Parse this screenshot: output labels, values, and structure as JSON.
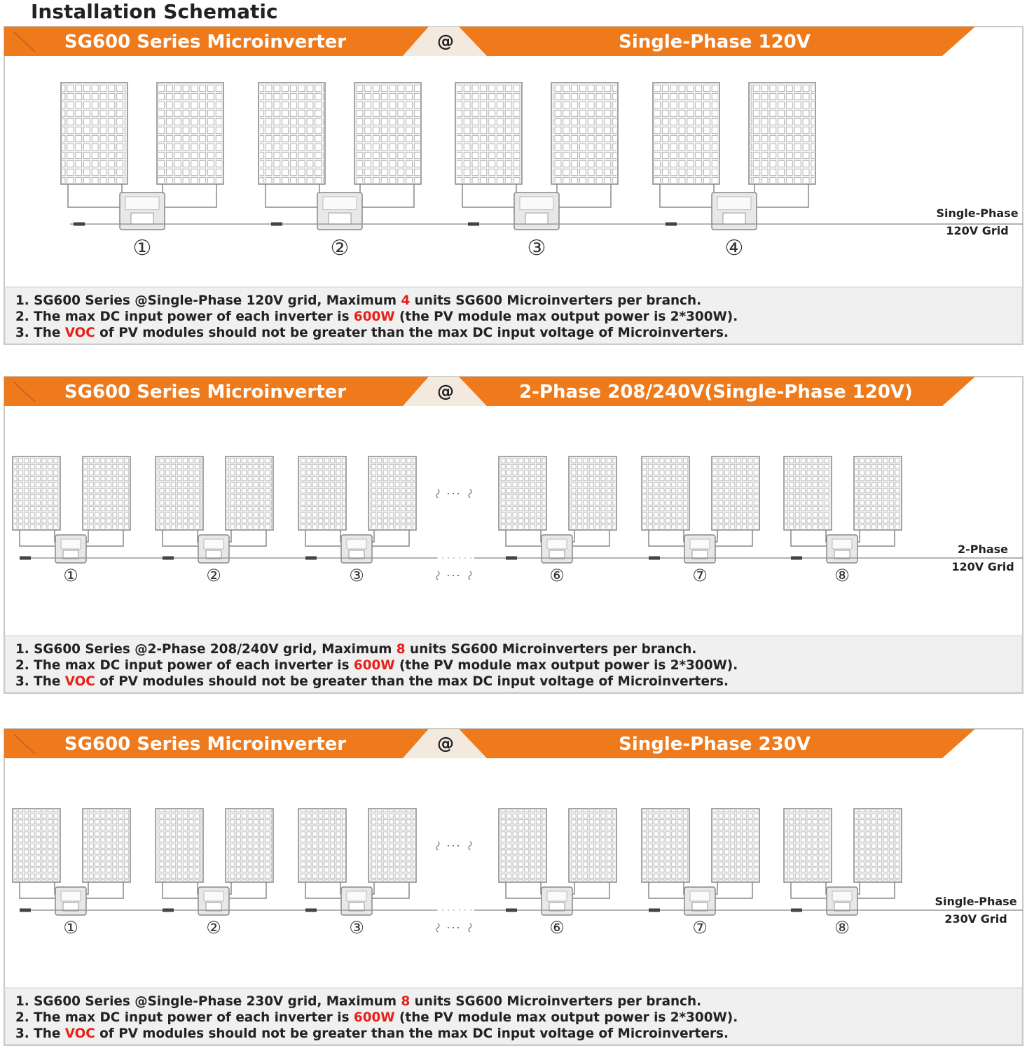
{
  "title": "Installation Schematic",
  "sections": [
    {
      "header": {
        "left": "SG600 Series Microinverter",
        "at": "@",
        "right": "Single-Phase 120V"
      },
      "units": [
        "①",
        "②",
        "③",
        "④"
      ],
      "grid_label": [
        "Single-Phase",
        "120V Grid"
      ],
      "notes": [
        {
          "before": "1. SG600 Series @Single-Phase 120V grid, Maximum ",
          "highlight": "4",
          "after": " units SG600 Microinverters  per branch."
        },
        {
          "before": "2. The max DC input power of each inverter is ",
          "highlight": "600W",
          "after": " (the PV module max output power is 2*300W)."
        },
        {
          "before": "3. The ",
          "highlight": "VOC",
          "after": " of PV modules should not be greater than the max DC input voltage of Microinverters."
        }
      ]
    },
    {
      "header": {
        "left": "SG600 Series Microinverter",
        "at": "@",
        "right": "2-Phase 208/240V(Single-Phase 120V)"
      },
      "units": [
        "①",
        "②",
        "③",
        "⑥",
        "⑦",
        "⑧"
      ],
      "grid_label": [
        "2-Phase",
        "120V Grid"
      ],
      "notes": [
        {
          "before": "1. SG600 Series @2-Phase 208/240V grid, Maximum ",
          "highlight": "8",
          "after": " units SG600 Microinverters per branch."
        },
        {
          "before": "2. The max DC input power of each inverter is ",
          "highlight": "600W",
          "after": " (the PV module max output power is 2*300W)."
        },
        {
          "before": "3. The ",
          "highlight": "VOC",
          "after": " of PV modules should not be greater than the max DC input voltage of Microinverters."
        }
      ]
    },
    {
      "header": {
        "left": "SG600 Series Microinverter",
        "at": "@",
        "right": "Single-Phase 230V"
      },
      "units": [
        "①",
        "②",
        "③",
        "⑥",
        "⑦",
        "⑧"
      ],
      "grid_label": [
        "Single-Phase",
        "230V Grid"
      ],
      "notes": [
        {
          "before": "1. SG600 Series @Single-Phase 230V grid, Maximum ",
          "highlight": "8",
          "after": " units SG600 Microinverters per branch."
        },
        {
          "before": "2. The max DC input power of each inverter is ",
          "highlight": "600W",
          "after": " (the PV module max output power is 2*300W)."
        },
        {
          "before": "3. The ",
          "highlight": "VOC",
          "after": " of PV modules should not be greater than the max DC input voltage of Microinverters."
        }
      ]
    }
  ]
}
